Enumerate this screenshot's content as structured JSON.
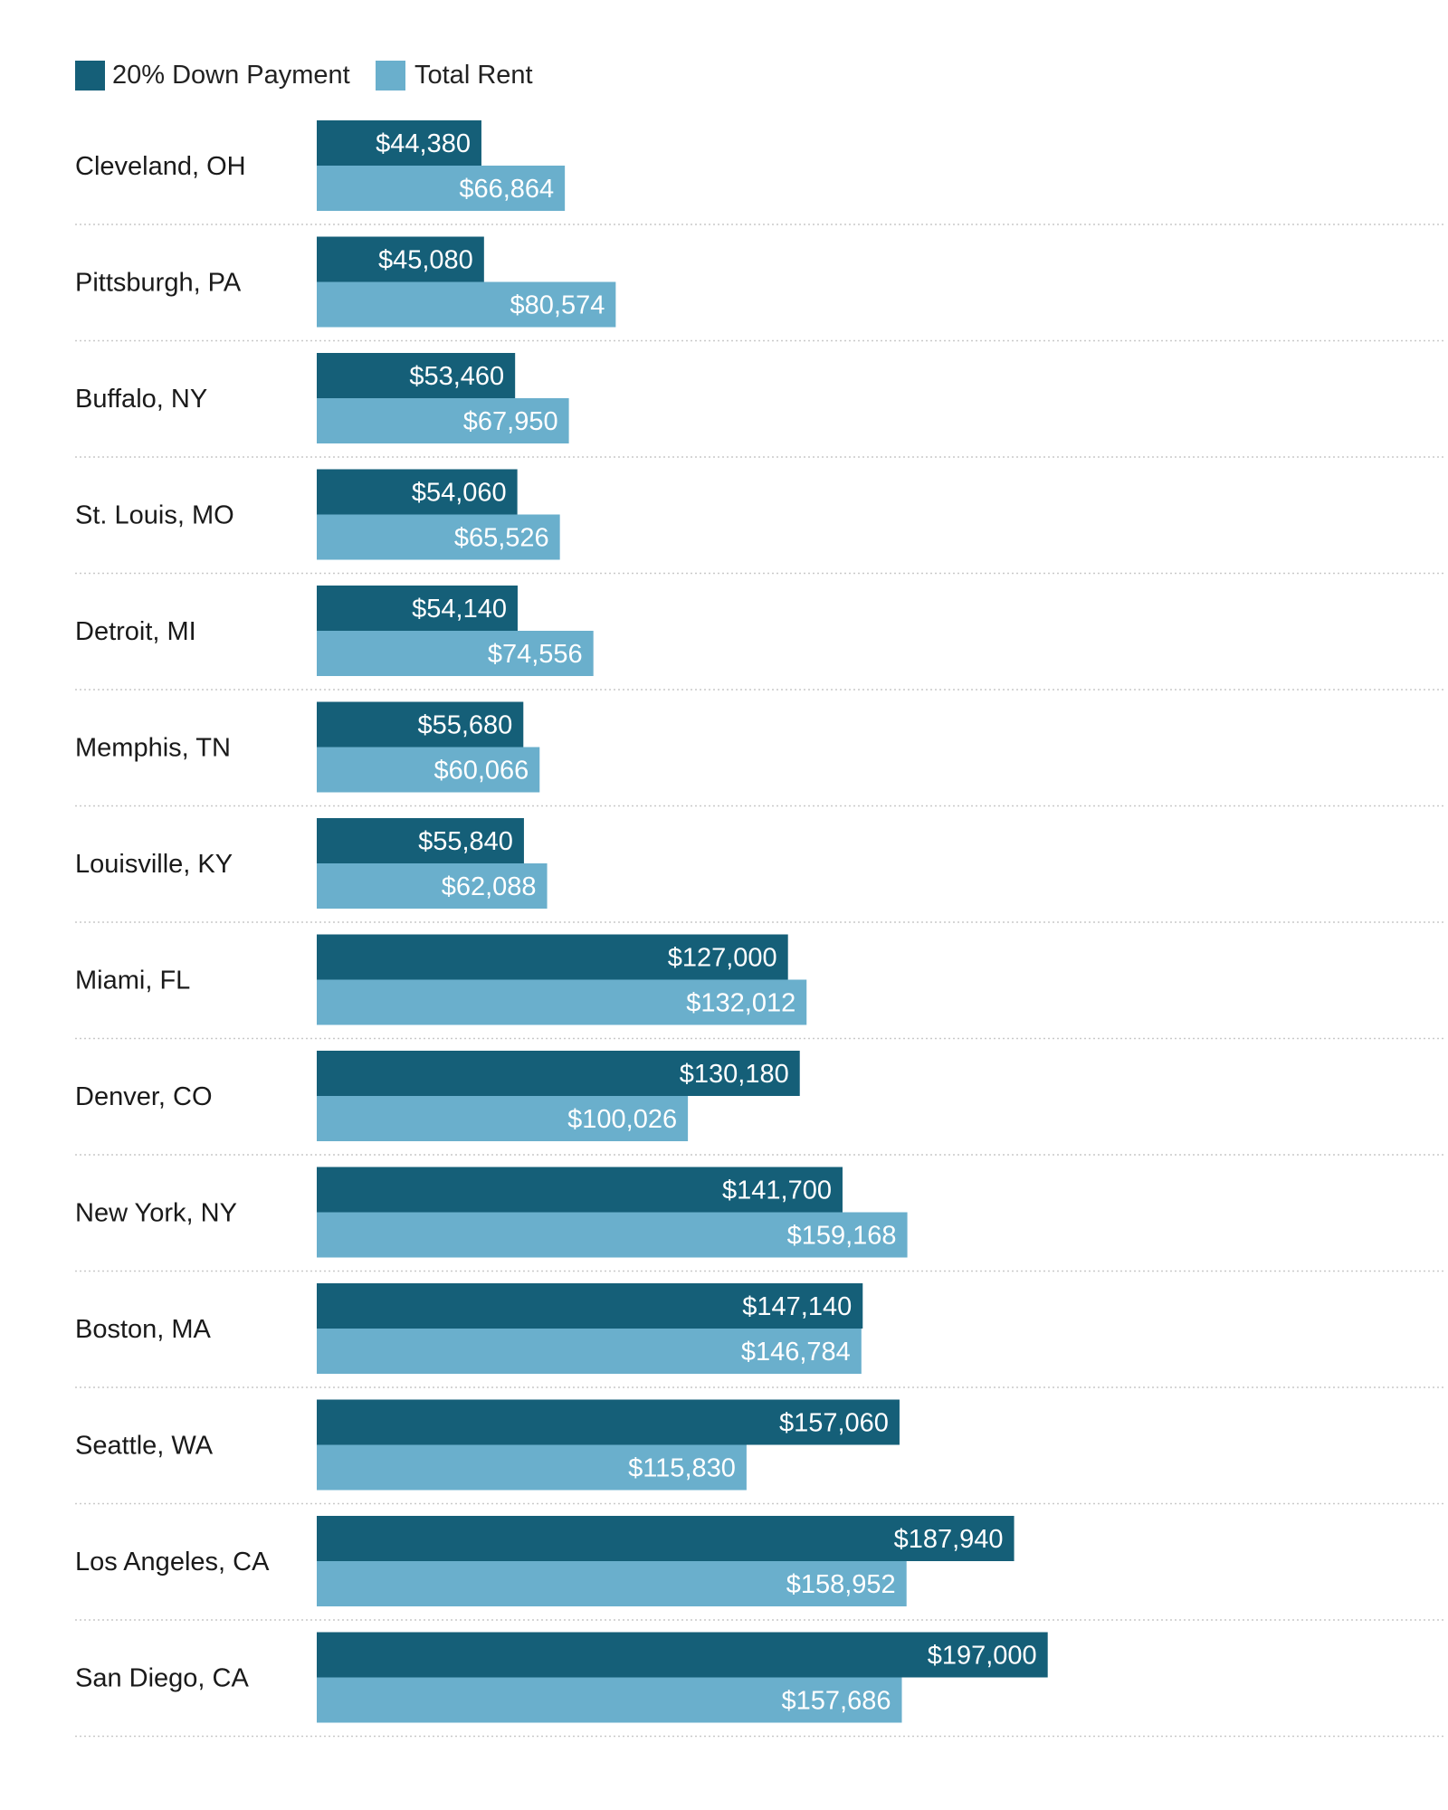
{
  "chart_data": {
    "type": "bar",
    "orientation": "horizontal",
    "categories": [
      "Cleveland, OH",
      "Pittsburgh, PA",
      "Buffalo, NY",
      "St. Louis, MO",
      "Detroit, MI",
      "Memphis, TN",
      "Louisville, KY",
      "Miami, FL",
      "Denver, CO",
      "New York, NY",
      "Boston, MA",
      "Seattle, WA",
      "Los Angeles, CA",
      "San Diego, CA"
    ],
    "series": [
      {
        "name": "20% Down Payment",
        "color": "#155f78",
        "values": [
          44380,
          45080,
          53460,
          54060,
          54140,
          55680,
          55840,
          127000,
          130180,
          141700,
          147140,
          157060,
          187940,
          197000
        ],
        "labels": [
          "$44,380",
          "$45,080",
          "$53,460",
          "$54,060",
          "$54,140",
          "$55,680",
          "$55,840",
          "$127,000",
          "$130,180",
          "$141,700",
          "$147,140",
          "$157,060",
          "$187,940",
          "$197,000"
        ]
      },
      {
        "name": "Total Rent",
        "color": "#6aafcc",
        "values": [
          66864,
          80574,
          67950,
          65526,
          74556,
          60066,
          62088,
          132012,
          100026,
          159168,
          146784,
          115830,
          158952,
          157686
        ],
        "labels": [
          "$66,864",
          "$80,574",
          "$67,950",
          "$65,526",
          "$74,556",
          "$60,066",
          "$62,088",
          "$132,012",
          "$100,026",
          "$159,168",
          "$146,784",
          "$115,830",
          "$158,952",
          "$157,686"
        ]
      }
    ],
    "title": "",
    "xlabel": "",
    "ylabel": "",
    "xlim": [
      0,
      200000
    ],
    "grid": false,
    "legend": "top-left"
  }
}
